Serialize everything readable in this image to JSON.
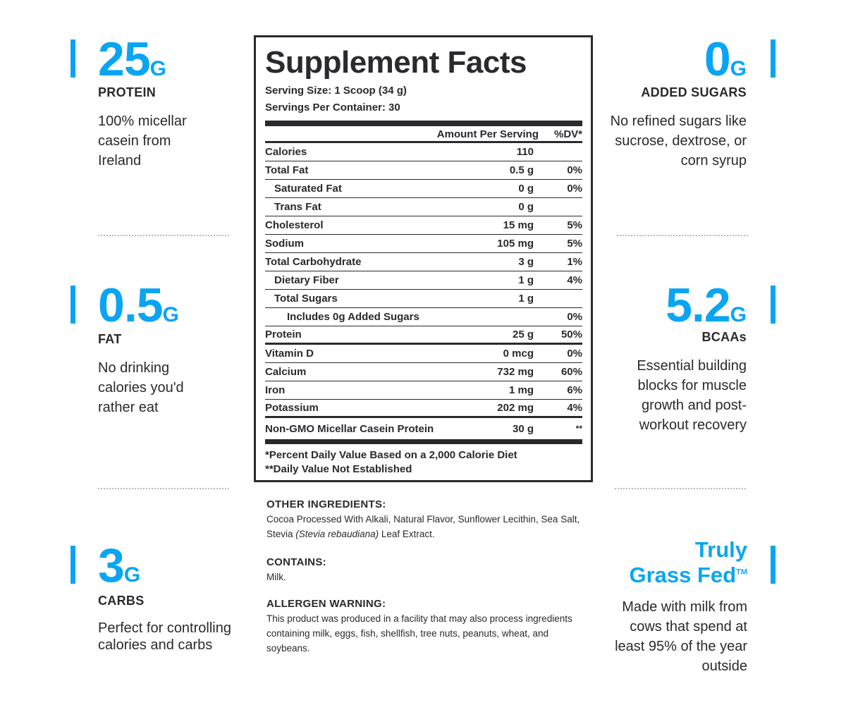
{
  "left_stats": [
    {
      "value": "25",
      "unit": "G",
      "label": "PROTEIN",
      "description": "100% micellar casein from Ireland"
    },
    {
      "value": "0.5",
      "unit": "G",
      "label": "FAT",
      "description": "No drinking calories you'd rather eat"
    },
    {
      "value": "3",
      "unit": "G",
      "label": "CARBS",
      "description": "Perfect for controlling calories and carbs"
    }
  ],
  "right_stats": [
    {
      "value": "0",
      "unit": "G",
      "label": "ADDED SUGARS",
      "description": "No refined sugars like sucrose, dextrose, or corn syrup"
    },
    {
      "value": "5.2",
      "unit": "G",
      "label": "BCAAs",
      "description": "Essential building blocks for muscle growth and post-workout recovery"
    },
    {
      "title_line1": "Truly",
      "title_line2": "Grass Fed",
      "trademark": "TM",
      "description": "Made with milk from cows that spend at least 95% of the year outside"
    }
  ],
  "facts": {
    "title": "Supplement Facts",
    "serving_size": "Serving Size: 1 Scoop (34 g)",
    "servings_per_container": "Servings Per Container: 30",
    "col_amount": "Amount Per Serving",
    "col_dv": "%DV*",
    "rows": [
      {
        "name": "Calories",
        "amount": "110",
        "dv": ""
      },
      {
        "name": "Total Fat",
        "amount": "0.5 g",
        "dv": "0%"
      },
      {
        "name": "Saturated Fat",
        "amount": "0 g",
        "dv": "0%"
      },
      {
        "name": "Trans Fat",
        "amount": "0 g",
        "dv": ""
      },
      {
        "name": "Cholesterol",
        "amount": "15 mg",
        "dv": "5%"
      },
      {
        "name": "Sodium",
        "amount": "105 mg",
        "dv": "5%"
      },
      {
        "name": "Total Carbohydrate",
        "amount": "3 g",
        "dv": "1%"
      },
      {
        "name": "Dietary Fiber",
        "amount": "1 g",
        "dv": "4%"
      },
      {
        "name": "Total Sugars",
        "amount": "1 g",
        "dv": ""
      },
      {
        "name": "Includes 0g Added Sugars",
        "amount": "",
        "dv": "0%"
      },
      {
        "name": "Protein",
        "amount": "25 g",
        "dv": "50%"
      },
      {
        "name": "Vitamin D",
        "amount": "0 mcg",
        "dv": "0%"
      },
      {
        "name": "Calcium",
        "amount": "732 mg",
        "dv": "60%"
      },
      {
        "name": "Iron",
        "amount": "1 mg",
        "dv": "6%"
      },
      {
        "name": "Potassium",
        "amount": "202 mg",
        "dv": "4%"
      },
      {
        "name": "Non-GMO Micellar Casein Protein",
        "amount": "30 g",
        "dv": "**"
      }
    ],
    "footnote1": "*Percent Daily Value Based on a 2,000 Calorie Diet",
    "footnote2": "**Daily Value Not Established"
  },
  "ingredients": {
    "other_heading": "OTHER INGREDIENTS:",
    "other_text_a": "Cocoa Processed With Alkali, Natural Flavor, Sunflower Lecithin, Sea Salt, Stevia ",
    "other_text_italic": "(Stevia rebaudiana)",
    "other_text_b": " Leaf Extract.",
    "contains_heading": "CONTAINS:",
    "contains_text": "Milk.",
    "allergen_heading": "ALLERGEN WARNING:",
    "allergen_text": "This product was produced in a facility that may also process ingredients containing milk, eggs, fish, shellfish, tree nuts, peanuts, wheat, and soybeans."
  },
  "colors": {
    "accent": "#0aa5f2",
    "text": "#2a2a2e",
    "divider": "#b8b8b8"
  }
}
